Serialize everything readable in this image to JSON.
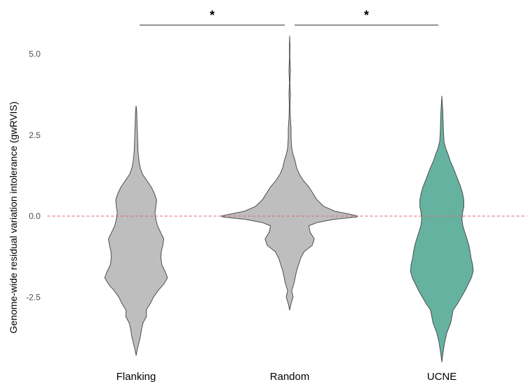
{
  "chart_data": {
    "type": "violin",
    "title": "",
    "xlabel": "",
    "ylabel": "Genome-wide residual variation intolerance (gwRVIS)",
    "categories": [
      "Flanking",
      "Random",
      "UCNE"
    ],
    "ylim": [
      -4.3,
      5.75
    ],
    "yticks": [
      -2.5,
      0.0,
      2.5,
      5.0
    ],
    "ytick_labels": [
      "-2.5",
      "0.0",
      "2.5",
      "5.0"
    ],
    "reference_line": {
      "y": 0.0,
      "color": "#e06666",
      "style": "dashed"
    },
    "grid": false,
    "colors": {
      "Flanking": "#bebebe",
      "Random": "#bebebe",
      "UCNE": "#66b2a1",
      "outline": "#4d4d4d"
    },
    "series": [
      {
        "category": "Flanking",
        "density_profile": [
          [
            -4.3,
            0.0
          ],
          [
            -4.1,
            0.04
          ],
          [
            -3.9,
            0.09
          ],
          [
            -3.7,
            0.14
          ],
          [
            -3.5,
            0.17
          ],
          [
            -3.3,
            0.22
          ],
          [
            -3.1,
            0.33
          ],
          [
            -2.9,
            0.32
          ],
          [
            -2.7,
            0.45
          ],
          [
            -2.5,
            0.55
          ],
          [
            -2.3,
            0.7
          ],
          [
            -2.1,
            0.88
          ],
          [
            -1.9,
            1.0
          ],
          [
            -1.7,
            0.92
          ],
          [
            -1.5,
            0.82
          ],
          [
            -1.3,
            0.79
          ],
          [
            -1.1,
            0.8
          ],
          [
            -0.9,
            0.85
          ],
          [
            -0.7,
            0.88
          ],
          [
            -0.5,
            0.78
          ],
          [
            -0.3,
            0.68
          ],
          [
            -0.1,
            0.63
          ],
          [
            0.1,
            0.6
          ],
          [
            0.3,
            0.63
          ],
          [
            0.5,
            0.65
          ],
          [
            0.7,
            0.58
          ],
          [
            0.9,
            0.48
          ],
          [
            1.1,
            0.34
          ],
          [
            1.3,
            0.2
          ],
          [
            1.5,
            0.13
          ],
          [
            1.7,
            0.09
          ],
          [
            2.0,
            0.06
          ],
          [
            2.3,
            0.05
          ],
          [
            2.6,
            0.04
          ],
          [
            2.9,
            0.03
          ],
          [
            3.2,
            0.02
          ],
          [
            3.4,
            0.0
          ]
        ]
      },
      {
        "category": "Random",
        "density_profile": [
          [
            -2.9,
            0.0
          ],
          [
            -2.7,
            0.02
          ],
          [
            -2.5,
            0.05
          ],
          [
            -2.3,
            0.03
          ],
          [
            -2.1,
            0.06
          ],
          [
            -1.9,
            0.08
          ],
          [
            -1.7,
            0.1
          ],
          [
            -1.5,
            0.13
          ],
          [
            -1.3,
            0.16
          ],
          [
            -1.1,
            0.21
          ],
          [
            -0.9,
            0.33
          ],
          [
            -0.7,
            0.36
          ],
          [
            -0.5,
            0.3
          ],
          [
            -0.3,
            0.28
          ],
          [
            -0.2,
            0.4
          ],
          [
            -0.1,
            0.65
          ],
          [
            -0.03,
            0.97
          ],
          [
            0.0,
            1.0
          ],
          [
            0.05,
            0.9
          ],
          [
            0.15,
            0.66
          ],
          [
            0.3,
            0.5
          ],
          [
            0.5,
            0.4
          ],
          [
            0.7,
            0.34
          ],
          [
            0.9,
            0.28
          ],
          [
            1.1,
            0.2
          ],
          [
            1.3,
            0.14
          ],
          [
            1.5,
            0.1
          ],
          [
            1.7,
            0.08
          ],
          [
            1.9,
            0.05
          ],
          [
            2.1,
            0.03
          ],
          [
            2.4,
            0.02
          ],
          [
            2.7,
            0.02
          ],
          [
            3.0,
            0.01
          ],
          [
            3.4,
            0.005
          ],
          [
            3.8,
            0.01
          ],
          [
            4.1,
            0.003
          ],
          [
            4.5,
            0.01
          ],
          [
            4.9,
            0.003
          ],
          [
            5.3,
            0.004
          ],
          [
            5.55,
            0.0
          ]
        ]
      },
      {
        "category": "UCNE",
        "density_profile": [
          [
            -4.5,
            0.0
          ],
          [
            -4.2,
            0.04
          ],
          [
            -3.9,
            0.09
          ],
          [
            -3.6,
            0.16
          ],
          [
            -3.3,
            0.28
          ],
          [
            -3.1,
            0.32
          ],
          [
            -2.9,
            0.36
          ],
          [
            -2.7,
            0.5
          ],
          [
            -2.5,
            0.62
          ],
          [
            -2.3,
            0.74
          ],
          [
            -2.1,
            0.84
          ],
          [
            -1.9,
            0.94
          ],
          [
            -1.7,
            1.0
          ],
          [
            -1.5,
            0.98
          ],
          [
            -1.3,
            0.93
          ],
          [
            -1.1,
            0.9
          ],
          [
            -0.9,
            0.86
          ],
          [
            -0.7,
            0.8
          ],
          [
            -0.5,
            0.73
          ],
          [
            -0.3,
            0.67
          ],
          [
            -0.1,
            0.64
          ],
          [
            0.1,
            0.66
          ],
          [
            0.3,
            0.7
          ],
          [
            0.5,
            0.7
          ],
          [
            0.7,
            0.66
          ],
          [
            0.9,
            0.6
          ],
          [
            1.1,
            0.52
          ],
          [
            1.3,
            0.44
          ],
          [
            1.5,
            0.36
          ],
          [
            1.7,
            0.27
          ],
          [
            1.9,
            0.2
          ],
          [
            2.1,
            0.12
          ],
          [
            2.3,
            0.07
          ],
          [
            2.6,
            0.05
          ],
          [
            2.9,
            0.04
          ],
          [
            3.2,
            0.03
          ],
          [
            3.7,
            0.0
          ]
        ]
      }
    ],
    "significance": [
      {
        "between": [
          "Flanking",
          "Random"
        ],
        "label": "*"
      },
      {
        "between": [
          "Random",
          "UCNE"
        ],
        "label": "*"
      }
    ]
  }
}
